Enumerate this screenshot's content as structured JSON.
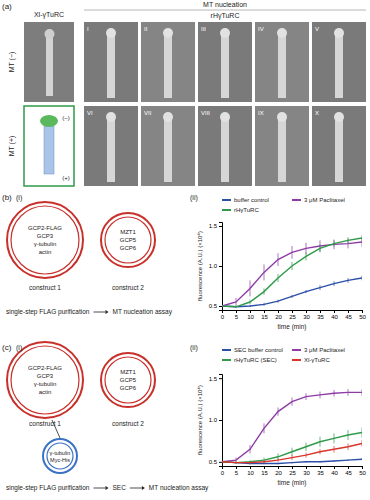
{
  "panels": {
    "a": {
      "label": "(a)",
      "column_headers": [
        "Xl-γTuRC",
        "MT nucleation"
      ],
      "subheader": "rHγTuRC",
      "row_labels": [
        "MT (−)",
        "MT (+)"
      ],
      "numerals": [
        [
          "I",
          "II",
          "III",
          "IV",
          "V"
        ],
        [
          "VI",
          "VII",
          "VIII",
          "IX",
          "X"
        ]
      ],
      "schematic_labels": [
        "(−)",
        "(+)"
      ]
    },
    "b": {
      "label": "(b)",
      "sub_labels": [
        "(i)",
        "(ii)"
      ],
      "constructs": [
        {
          "name": "construct 1",
          "contents": [
            "GCP2-FLAG",
            "GCP3",
            "γ-tubulin",
            "actin"
          ]
        },
        {
          "name": "construct 2",
          "contents": [
            "MZT1",
            "GCP5",
            "GCP6"
          ]
        }
      ],
      "steps": [
        "single-step FLAG purification",
        "MT nucleation assay"
      ]
    },
    "c": {
      "label": "(c)",
      "sub_labels": [
        "(i)",
        "(ii)"
      ],
      "constructs": [
        {
          "name": "construct 1",
          "contents": [
            "GCP2-FLAG",
            "GCP3",
            "γ-tubulin",
            "actin"
          ]
        },
        {
          "name": "construct 2",
          "contents": [
            "MZT1",
            "GCP5",
            "GCP6"
          ]
        }
      ],
      "plasmid": [
        "γ-tubulin",
        "Myc-His"
      ],
      "steps": [
        "single-step FLAG purification",
        "SEC",
        "MT nucleation assay"
      ]
    }
  },
  "chart_data": [
    {
      "type": "line",
      "x_label": "time (min)",
      "y_label": "fluorescence (A.U.) (×10⁴)",
      "x": [
        0,
        5,
        10,
        15,
        20,
        25,
        30,
        35,
        40,
        45,
        50
      ],
      "xlim": [
        0,
        50
      ],
      "xticks": [
        0,
        5,
        10,
        15,
        20,
        25,
        30,
        35,
        40,
        45,
        50
      ],
      "ylim": [
        0.45,
        1.55
      ],
      "yticks": [
        0.5,
        {
          "value": 1,
          "label": "1.0"
        },
        1.5
      ],
      "series": [
        {
          "name": "buffer control",
          "color": "#2b4fa8",
          "values": [
            0.5,
            0.49,
            0.5,
            0.52,
            0.56,
            0.62,
            0.68,
            0.73,
            0.78,
            0.82,
            0.85
          ],
          "errors": [
            0.01,
            0.01,
            0.01,
            0.02,
            0.02,
            0.02,
            0.02,
            0.03,
            0.03,
            0.03,
            0.03
          ]
        },
        {
          "name": "3 μM Paclitaxel",
          "color": "#8e3ba6",
          "values": [
            0.5,
            0.55,
            0.72,
            0.92,
            1.08,
            1.17,
            1.22,
            1.25,
            1.27,
            1.28,
            1.3
          ],
          "errors": [
            0.02,
            0.05,
            0.1,
            0.1,
            0.08,
            0.08,
            0.07,
            0.07,
            0.06,
            0.06,
            0.06
          ]
        },
        {
          "name": "rHγTuRC",
          "color": "#2e9a4a",
          "values": [
            0.5,
            0.49,
            0.55,
            0.68,
            0.85,
            1.0,
            1.12,
            1.22,
            1.28,
            1.32,
            1.35
          ],
          "errors": [
            0.01,
            0.01,
            0.03,
            0.04,
            0.05,
            0.05,
            0.05,
            0.05,
            0.04,
            0.04,
            0.04
          ]
        }
      ]
    },
    {
      "type": "line",
      "x_label": "time (min)",
      "y_label": "fluorescence (A.U.) (×10⁴)",
      "x": [
        0,
        5,
        10,
        15,
        20,
        25,
        30,
        35,
        40,
        45,
        50
      ],
      "xlim": [
        0,
        50
      ],
      "xticks": [
        0,
        5,
        10,
        15,
        20,
        25,
        30,
        35,
        40,
        45,
        50
      ],
      "ylim": [
        0.45,
        1.55
      ],
      "yticks": [
        0.5,
        {
          "value": 1,
          "label": "1.0"
        },
        1.5
      ],
      "series": [
        {
          "name": "SEC buffer control",
          "color": "#2b4fa8",
          "values": [
            0.5,
            0.49,
            0.48,
            0.48,
            0.48,
            0.49,
            0.5,
            0.5,
            0.51,
            0.52,
            0.53
          ],
          "errors": [
            0.01,
            0.01,
            0.01,
            0.01,
            0.01,
            0.01,
            0.01,
            0.01,
            0.01,
            0.01,
            0.01
          ]
        },
        {
          "name": "3 μM Paclitaxel",
          "color": "#8e3ba6",
          "values": [
            0.5,
            0.52,
            0.65,
            0.9,
            1.1,
            1.22,
            1.28,
            1.3,
            1.32,
            1.33,
            1.33
          ],
          "errors": [
            0.02,
            0.03,
            0.05,
            0.06,
            0.05,
            0.05,
            0.04,
            0.04,
            0.04,
            0.04,
            0.04
          ]
        },
        {
          "name": "rHγTuRC (SEC)",
          "color": "#2e9a4a",
          "values": [
            0.5,
            0.49,
            0.5,
            0.52,
            0.56,
            0.62,
            0.68,
            0.74,
            0.78,
            0.82,
            0.85
          ],
          "errors": [
            0.01,
            0.01,
            0.02,
            0.03,
            0.04,
            0.05,
            0.05,
            0.06,
            0.06,
            0.06,
            0.06
          ]
        },
        {
          "name": "Xl-γTuRC",
          "color": "#d8352b",
          "values": [
            0.5,
            0.49,
            0.49,
            0.5,
            0.52,
            0.55,
            0.58,
            0.62,
            0.65,
            0.68,
            0.72
          ],
          "errors": [
            0.01,
            0.01,
            0.01,
            0.02,
            0.02,
            0.03,
            0.03,
            0.03,
            0.04,
            0.04,
            0.04
          ]
        }
      ]
    }
  ]
}
